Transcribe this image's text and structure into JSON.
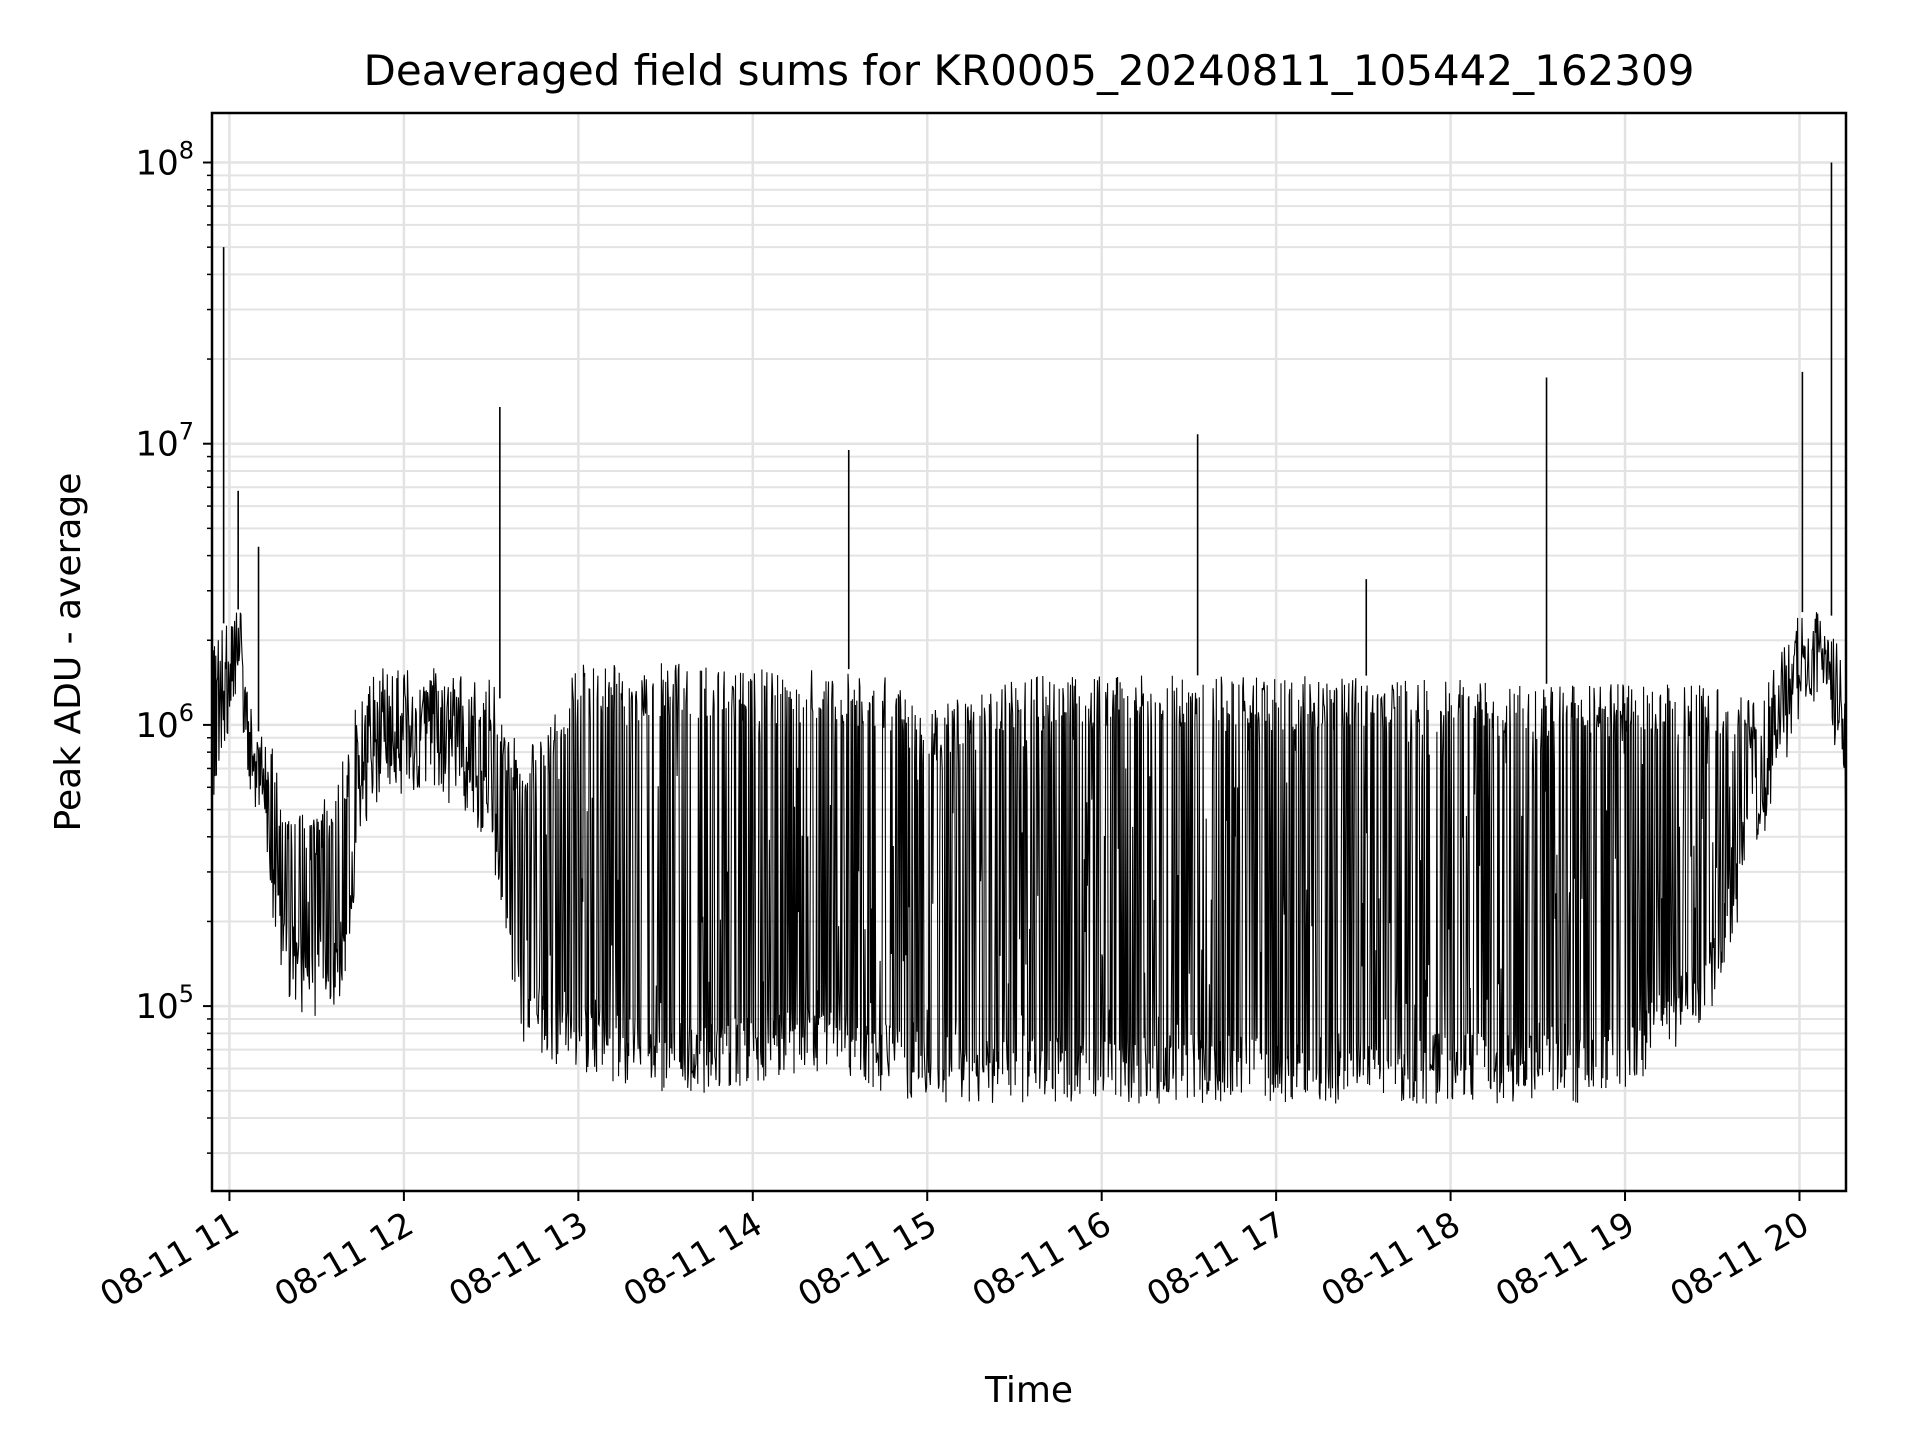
{
  "chart_data": {
    "type": "line",
    "title": "Deaveraged field sums for KR0005_20240811_105442_162309",
    "xlabel": "Time",
    "ylabel": "Peak ADU - average",
    "yscale": "log",
    "ylim": [
      22000,
      150000000
    ],
    "xlim": [
      "2024-08-11 10:54",
      "2024-08-11 20:16"
    ],
    "grid": true,
    "line_color": "#000000",
    "x_tick_labels": [
      "08-11 11",
      "08-11 12",
      "08-11 13",
      "08-11 14",
      "08-11 15",
      "08-11 16",
      "08-11 17",
      "08-11 18",
      "08-11 19",
      "08-11 20"
    ],
    "x_ticks": [
      "2024-08-11 11:00",
      "2024-08-11 12:00",
      "2024-08-11 13:00",
      "2024-08-11 14:00",
      "2024-08-11 15:00",
      "2024-08-11 16:00",
      "2024-08-11 17:00",
      "2024-08-11 18:00",
      "2024-08-11 19:00",
      "2024-08-11 20:00"
    ],
    "y_tick_labels": [
      {
        "base": "10",
        "exp": "5",
        "value": 100000
      },
      {
        "base": "10",
        "exp": "6",
        "value": 1000000
      },
      {
        "base": "10",
        "exp": "7",
        "value": 10000000
      },
      {
        "base": "10",
        "exp": "8",
        "value": 100000000
      }
    ],
    "series": [
      {
        "x": [
          "2024-08-11 10:54",
          "2024-08-11 10:57",
          "2024-08-11 11:00",
          "2024-08-11 11:04",
          "2024-08-11 11:08",
          "2024-08-11 11:12",
          "2024-08-11 11:16",
          "2024-08-11 11:20",
          "2024-08-11 11:25",
          "2024-08-11 11:30",
          "2024-08-11 11:35",
          "2024-08-11 11:40",
          "2024-08-11 11:45",
          "2024-08-11 11:50",
          "2024-08-11 11:55",
          "2024-08-11 12:00",
          "2024-08-11 12:10",
          "2024-08-11 12:20",
          "2024-08-11 12:30",
          "2024-08-11 12:40",
          "2024-08-11 12:50",
          "2024-08-11 13:00",
          "2024-08-11 13:15",
          "2024-08-11 13:30",
          "2024-08-11 13:45",
          "2024-08-11 14:00",
          "2024-08-11 14:15",
          "2024-08-11 14:30",
          "2024-08-11 14:45",
          "2024-08-11 15:00",
          "2024-08-11 15:15",
          "2024-08-11 15:30",
          "2024-08-11 15:45",
          "2024-08-11 16:00",
          "2024-08-11 16:15",
          "2024-08-11 16:30",
          "2024-08-11 16:45",
          "2024-08-11 17:00",
          "2024-08-11 17:15",
          "2024-08-11 17:30",
          "2024-08-11 17:45",
          "2024-08-11 18:00",
          "2024-08-11 18:15",
          "2024-08-11 18:30",
          "2024-08-11 18:45",
          "2024-08-11 19:00",
          "2024-08-11 19:15",
          "2024-08-11 19:30",
          "2024-08-11 19:45",
          "2024-08-11 20:00",
          "2024-08-11 20:10",
          "2024-08-11 20:16"
        ],
        "baseline": [
          400000,
          900000,
          1200000,
          1300000,
          600000,
          400000,
          200000,
          130000,
          110000,
          110000,
          120000,
          140000,
          500000,
          600000,
          650000,
          700000,
          650000,
          600000,
          450000,
          90000,
          75000,
          70000,
          65000,
          60000,
          60000,
          65000,
          70000,
          70000,
          60000,
          55000,
          55000,
          55000,
          55000,
          55000,
          55000,
          55000,
          55000,
          55000,
          55000,
          55000,
          55000,
          55000,
          55000,
          55000,
          55000,
          60000,
          80000,
          120000,
          400000,
          1300000,
          1500000,
          500000
        ],
        "peak": [
          2000000,
          2200000,
          2500000,
          2600000,
          1000000,
          900000,
          800000,
          600000,
          500000,
          500000,
          600000,
          800000,
          1500000,
          1600000,
          1600000,
          1600000,
          1600000,
          1500000,
          1500000,
          800000,
          1000000,
          1700000,
          1700000,
          1700000,
          1600000,
          1600000,
          1600000,
          1600000,
          1500000,
          1100000,
          1300000,
          1500000,
          1500000,
          1500000,
          1500000,
          1500000,
          1500000,
          1500000,
          1500000,
          1500000,
          1450000,
          1450000,
          1450000,
          1400000,
          1400000,
          1400000,
          1400000,
          1400000,
          1200000,
          2500000,
          2700000,
          1500000
        ]
      }
    ],
    "spikes": [
      {
        "x": "2024-08-11 10:58",
        "y": 50000000
      },
      {
        "x": "2024-08-11 11:03",
        "y": 6800000
      },
      {
        "x": "2024-08-11 11:10",
        "y": 4300000
      },
      {
        "x": "2024-08-11 12:33",
        "y": 13500000
      },
      {
        "x": "2024-08-11 14:33",
        "y": 9500000
      },
      {
        "x": "2024-08-11 16:33",
        "y": 10800000
      },
      {
        "x": "2024-08-11 17:31",
        "y": 3300000
      },
      {
        "x": "2024-08-11 18:33",
        "y": 17200000
      },
      {
        "x": "2024-08-11 20:01",
        "y": 18000000
      },
      {
        "x": "2024-08-11 20:11",
        "y": 100000000
      }
    ]
  }
}
